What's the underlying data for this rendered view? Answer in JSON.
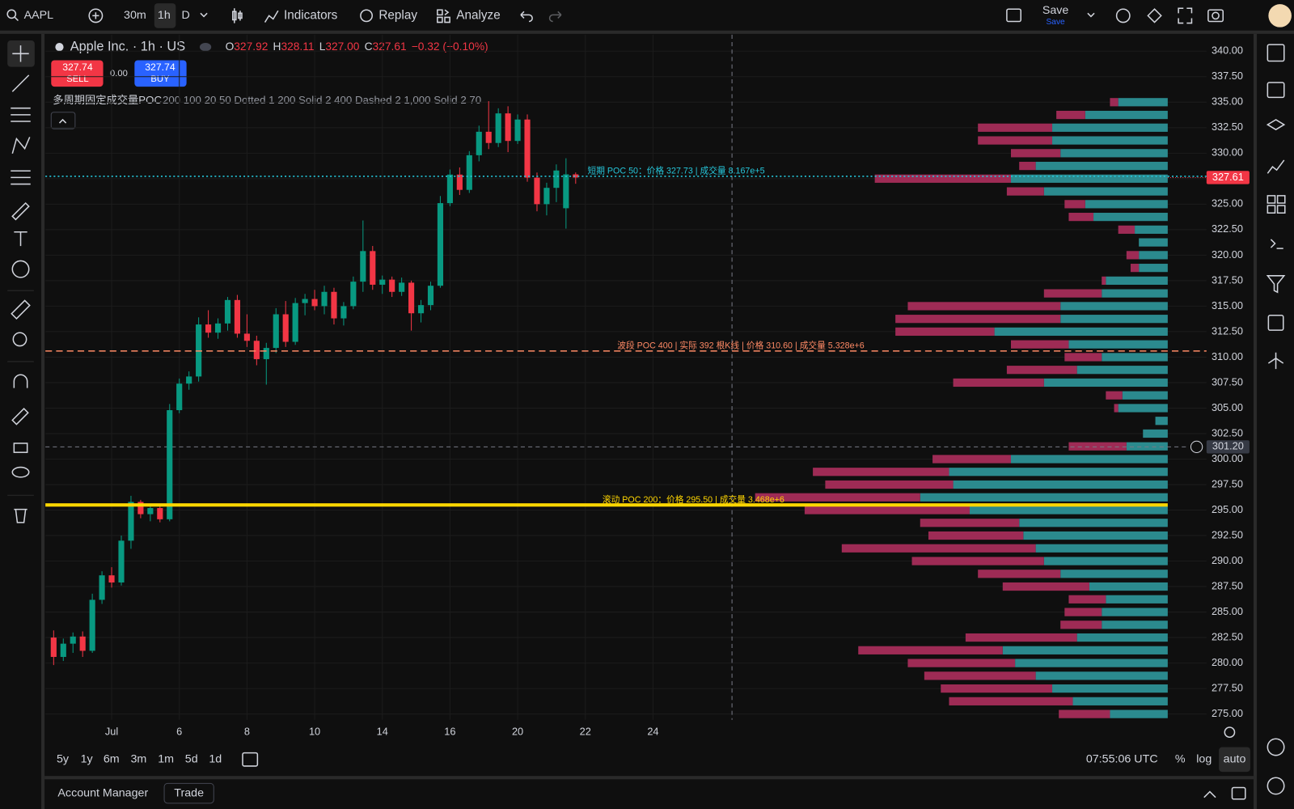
{
  "toolbar": {
    "symbol": "AAPL",
    "intervals": [
      "30m",
      "1h",
      "D"
    ],
    "indicators": "Indicators",
    "replay": "Replay",
    "analyze": "Analyze",
    "save": "Save",
    "save_hint": "Save"
  },
  "legend": {
    "title": "Apple Inc. · 1h · US",
    "open_label": "O",
    "open": "327.92",
    "high_label": "H",
    "high": "328.11",
    "low_label": "L",
    "low": "327.00",
    "close_label": "C",
    "close": "327.61",
    "change": "−0.32 (−0.10%)"
  },
  "trade": {
    "sell_price": "327.74",
    "sell": "SELL",
    "spread": "0.00",
    "buy_price": "327.74",
    "buy": "BUY"
  },
  "indicator": {
    "name": "多周期固定成交量POC",
    "params": "200 100 20 50 Dotted 1 200 Solid 2 400 Dashed 2 1,000 Solid 2 70"
  },
  "chart_data": {
    "type": "candlestick",
    "categories": [
      null,
      null,
      null,
      null,
      null,
      null,
      "Jul",
      null,
      null,
      null,
      null,
      null,
      null,
      "6",
      null,
      null,
      null,
      null,
      null,
      null,
      "8",
      null,
      null,
      null,
      null,
      null,
      null,
      "10",
      null,
      null,
      null,
      null,
      null,
      null,
      "14",
      null,
      null,
      null,
      null,
      null,
      null,
      "16",
      null,
      null,
      null,
      null,
      null,
      null,
      "20",
      null,
      null,
      null,
      null,
      null,
      null,
      "22",
      null,
      null,
      null,
      null,
      null,
      null,
      "24"
    ],
    "open": [
      282.5,
      280.6,
      281.9,
      282.6,
      281.2,
      286.2,
      288.6,
      287.9,
      292.0,
      295.8,
      294.6,
      295.2,
      294.1,
      304.8,
      307.4,
      308.1,
      313.2,
      312.4,
      313.3,
      315.6,
      312.3,
      311.6,
      309.8,
      310.9,
      314.2,
      311.5,
      315.3,
      315.7,
      315.0,
      316.4,
      313.8,
      315.0,
      317.4,
      320.4,
      317.1,
      317.6,
      316.4,
      317.3,
      314.3,
      315.1,
      317.0,
      325.1,
      327.9,
      326.4,
      329.8,
      332.1,
      331.0,
      333.9,
      331.2,
      333.3,
      327.6,
      325.0,
      326.6,
      324.6,
      327.92,
      null,
      null,
      null,
      null,
      null,
      null,
      null,
      null
    ],
    "high": [
      283.2,
      282.4,
      283.0,
      283.1,
      286.8,
      289.0,
      289.4,
      292.5,
      296.4,
      296.0,
      295.6,
      295.4,
      305.4,
      307.9,
      308.6,
      313.9,
      314.6,
      313.8,
      315.9,
      316.1,
      314.2,
      312.1,
      311.4,
      314.8,
      315.5,
      315.8,
      316.2,
      316.6,
      317.0,
      316.8,
      315.4,
      317.9,
      323.4,
      320.9,
      318.0,
      317.9,
      317.8,
      317.5,
      315.6,
      317.4,
      325.8,
      328.4,
      328.6,
      330.2,
      332.7,
      335.1,
      334.4,
      334.6,
      333.8,
      333.8,
      328.1,
      327.1,
      328.9,
      329.5,
      328.11,
      null,
      null,
      null,
      null,
      null,
      null,
      null,
      null
    ],
    "low": [
      279.8,
      280.2,
      281.0,
      280.6,
      281.0,
      285.8,
      287.4,
      287.6,
      291.2,
      294.2,
      293.9,
      293.8,
      293.9,
      304.5,
      306.8,
      307.6,
      311.9,
      311.8,
      312.6,
      311.9,
      311.0,
      309.2,
      307.3,
      310.4,
      311.0,
      311.2,
      314.1,
      314.6,
      314.2,
      313.2,
      313.1,
      314.7,
      316.4,
      316.6,
      316.2,
      315.9,
      316.0,
      312.6,
      313.4,
      314.6,
      316.8,
      324.8,
      325.9,
      326.1,
      329.2,
      330.4,
      330.6,
      330.1,
      330.9,
      327.2,
      324.3,
      323.9,
      325.2,
      322.6,
      327.0,
      null,
      null,
      null,
      null,
      null,
      null,
      null,
      null
    ],
    "close": [
      280.6,
      281.9,
      282.6,
      281.2,
      286.2,
      288.6,
      287.9,
      292.0,
      295.8,
      294.6,
      295.2,
      294.1,
      304.8,
      307.4,
      308.1,
      313.2,
      312.4,
      313.3,
      315.6,
      312.3,
      311.6,
      309.8,
      310.9,
      314.2,
      311.5,
      315.3,
      315.7,
      315.0,
      316.4,
      313.8,
      315.0,
      317.4,
      320.4,
      317.1,
      317.6,
      316.4,
      317.3,
      314.3,
      315.1,
      317.0,
      325.1,
      327.9,
      326.4,
      329.8,
      332.1,
      331.0,
      333.9,
      331.2,
      333.3,
      327.6,
      325.0,
      326.6,
      328.3,
      327.92,
      327.61,
      null,
      null,
      null,
      null,
      null,
      null,
      null,
      null
    ],
    "up_color": "#089981",
    "down_color": "#f23645",
    "ylim": [
      274.43,
      341.62
    ],
    "yticks": [
      {
        "value": 275,
        "label": "275.00"
      },
      {
        "value": 277.5,
        "label": "277.50"
      },
      {
        "value": 280,
        "label": "280.00"
      },
      {
        "value": 282.5,
        "label": "282.50"
      },
      {
        "value": 285,
        "label": "285.00"
      },
      {
        "value": 287.5,
        "label": "287.50"
      },
      {
        "value": 290,
        "label": "290.00"
      },
      {
        "value": 292.5,
        "label": "292.50"
      },
      {
        "value": 295,
        "label": "295.00"
      },
      {
        "value": 297.5,
        "label": "297.50"
      },
      {
        "value": 300,
        "label": "300.00"
      },
      {
        "value": 302.5,
        "label": "302.50"
      },
      {
        "value": 305,
        "label": "305.00"
      },
      {
        "value": 307.5,
        "label": "307.50"
      },
      {
        "value": 310,
        "label": "310.00"
      },
      {
        "value": 312.5,
        "label": "312.50"
      },
      {
        "value": 315,
        "label": "315.00"
      },
      {
        "value": 317.5,
        "label": "317.50"
      },
      {
        "value": 320,
        "label": "320.00"
      },
      {
        "value": 322.5,
        "label": "322.50"
      },
      {
        "value": 325,
        "label": "325.00"
      },
      {
        "value": 327.5,
        "label": "327.50"
      },
      {
        "value": 330,
        "label": "330.00"
      },
      {
        "value": 332.5,
        "label": "332.50"
      },
      {
        "value": 335,
        "label": "335.00"
      },
      {
        "value": 337.5,
        "label": "337.50"
      },
      {
        "value": 340,
        "label": "340.00"
      }
    ],
    "grid": true,
    "last_price": {
      "value": 327.61,
      "label": "327.61"
    },
    "crosshair": {
      "value": 301.2,
      "label": "301.20"
    },
    "poc_lines": [
      {
        "label": "短期 POC 50：价格 327.73 | 成交量 8.167e+5",
        "price": 327.73,
        "color": "#26c6da",
        "style": "dotted"
      },
      {
        "label": "波段 POC 400 | 实际 392 根K线 | 价格 310.60 | 成交量 5.328e+6",
        "price": 310.6,
        "color": "#ff8a65",
        "style": "dashed"
      },
      {
        "label": "滚动 POC 200：价格 295.50 | 成交量 3.468e+6",
        "price": 295.5,
        "color": "#ffd600",
        "style": "solid"
      }
    ],
    "volume_profile": {
      "up_color": "#2b8a8e",
      "down_color": "#9e2b55",
      "prices": [
        275,
        276.25,
        277.5,
        278.75,
        280,
        281.25,
        282.5,
        283.75,
        285,
        286.25,
        287.5,
        288.75,
        290,
        291.25,
        292.5,
        293.75,
        295,
        296.25,
        297.5,
        298.75,
        300,
        301.25,
        302.5,
        303.75,
        305,
        306.25,
        307.5,
        308.75,
        310,
        311.25,
        312.5,
        313.75,
        315,
        316.25,
        317.5,
        318.75,
        320,
        321.25,
        322.5,
        323.75,
        325,
        326.25,
        327.5,
        328.75,
        330,
        331.25,
        332.5,
        333.75,
        335
      ],
      "up": [
        70,
        115,
        140,
        160,
        185,
        200,
        110,
        80,
        80,
        75,
        95,
        130,
        150,
        160,
        175,
        180,
        240,
        300,
        260,
        265,
        190,
        50,
        30,
        15,
        60,
        55,
        150,
        110,
        80,
        120,
        210,
        130,
        130,
        80,
        75,
        35,
        35,
        35,
        40,
        90,
        100,
        150,
        190,
        160,
        130,
        140,
        140,
        100,
        60
      ],
      "down": [
        62,
        150,
        135,
        135,
        130,
        175,
        135,
        50,
        45,
        45,
        105,
        100,
        160,
        235,
        115,
        120,
        200,
        200,
        155,
        165,
        95,
        70,
        0,
        0,
        5,
        20,
        110,
        85,
        45,
        70,
        120,
        200,
        185,
        70,
        5,
        10,
        15,
        0,
        20,
        30,
        25,
        45,
        165,
        20,
        60,
        90,
        90,
        35,
        10
      ]
    }
  },
  "bottom_bar": {
    "ranges": [
      "5y",
      "1y",
      "6m",
      "3m",
      "1m",
      "5d",
      "1d"
    ],
    "clock": "07:55:06 UTC",
    "percent": "%",
    "log": "log",
    "auto": "auto"
  },
  "footer": {
    "account_manager": "Account Manager",
    "trade": "Trade"
  }
}
